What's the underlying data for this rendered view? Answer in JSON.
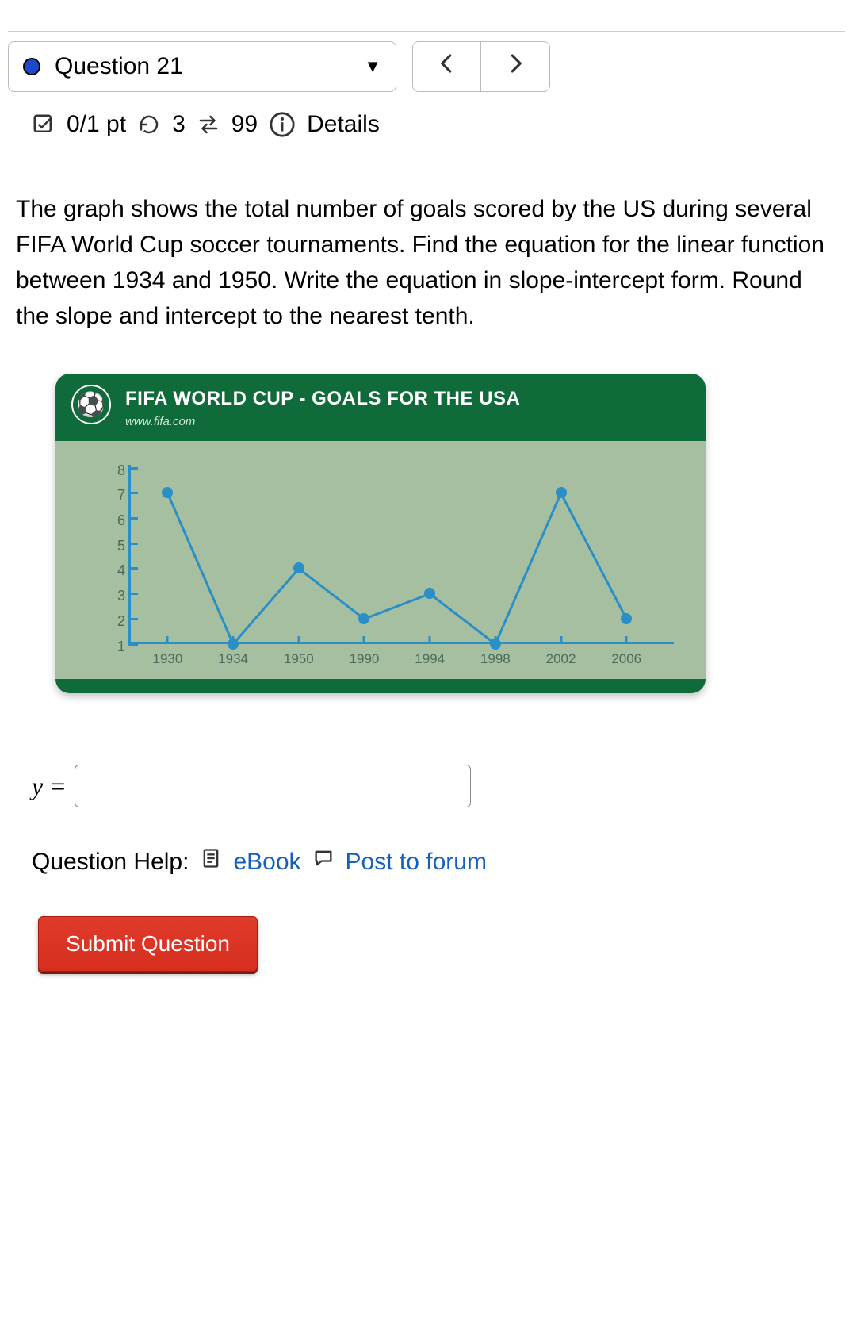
{
  "nav": {
    "question_label": "Question 21",
    "prev_glyph": "‹",
    "next_glyph": "›"
  },
  "meta": {
    "score": "0/1 pt",
    "attempts_left": "3",
    "reattempts": "99",
    "details_label": "Details"
  },
  "prompt": "The graph shows the total number of goals scored by the US during several FIFA World Cup soccer tournaments. Find the equation for the linear function between 1934 and 1950. Write the equation in slope-intercept form. Round the slope and intercept to the nearest tenth.",
  "chart": {
    "title": "FIFA WORLD CUP - GOALS FOR THE USA",
    "subtitle": "www.fifa.com",
    "type": "line",
    "x_labels": [
      "1930",
      "1934",
      "1950",
      "1990",
      "1994",
      "1998",
      "2002",
      "2006"
    ],
    "y_ticks": [
      1,
      2,
      3,
      4,
      5,
      6,
      7,
      8
    ],
    "y_min": 1,
    "y_max": 8,
    "values": [
      7,
      1,
      4,
      2,
      3,
      1,
      7,
      2
    ],
    "line_color": "#2a8fc7",
    "point_color": "#2a8fc7",
    "bg_color": "#a6bfa0",
    "header_bg": "#0f6b3a",
    "axis_color": "#2a8fc7",
    "tick_text_color": "#4a6a5c",
    "title_color": "#ffffff",
    "subtitle_color": "#cfe6d7",
    "title_fontsize": 24,
    "subtitle_fontsize": 15,
    "tick_fontsize": 17,
    "line_width": 3,
    "point_radius": 7
  },
  "answer": {
    "prefix": "y =",
    "placeholder": ""
  },
  "help": {
    "label": "Question Help:",
    "ebook": "eBook",
    "forum": "Post to forum"
  },
  "submit_label": "Submit Question",
  "colors": {
    "link": "#1560bd",
    "submit_bg": "#e03a2a",
    "submit_text": "#ffffff",
    "dot": "#1a4ac9"
  }
}
